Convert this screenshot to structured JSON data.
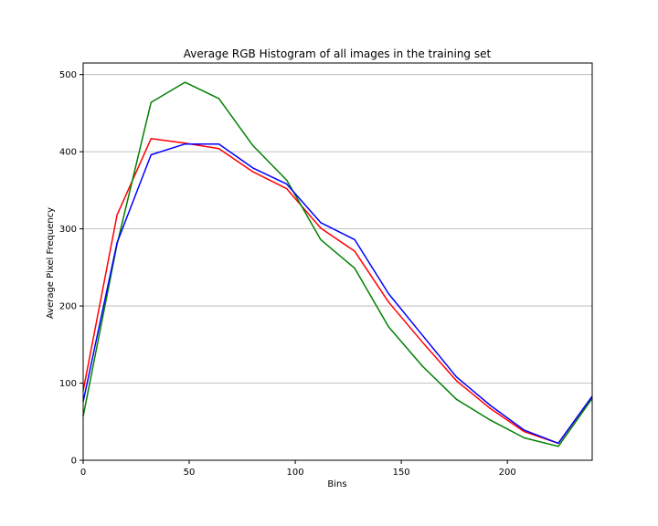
{
  "chart_data": {
    "type": "line",
    "title": "Average RGB Histogram of all images in the training set",
    "xlabel": "Bins",
    "ylabel": "Average Pixel Frequency",
    "xlim": [
      0,
      240
    ],
    "ylim": [
      0,
      515
    ],
    "xticks": [
      0,
      50,
      100,
      150,
      200
    ],
    "yticks": [
      0,
      100,
      200,
      300,
      400,
      500
    ],
    "grid": "horizontal",
    "x": [
      0,
      16,
      32,
      48,
      64,
      80,
      96,
      112,
      128,
      144,
      160,
      176,
      192,
      208,
      224,
      240
    ],
    "series": [
      {
        "color": "#ff0000",
        "values": [
          90,
          318,
          417,
          411,
          404,
          374,
          352,
          301,
          271,
          205,
          153,
          103,
          67,
          37,
          22,
          83
        ]
      },
      {
        "color": "#008000",
        "values": [
          57,
          280,
          464,
          490,
          469,
          408,
          363,
          286,
          249,
          173,
          122,
          79,
          52,
          29,
          18,
          80
        ]
      },
      {
        "color": "#0000ff",
        "values": [
          76,
          282,
          396,
          410,
          410,
          379,
          358,
          308,
          286,
          216,
          162,
          108,
          71,
          39,
          22,
          83
        ]
      }
    ]
  }
}
